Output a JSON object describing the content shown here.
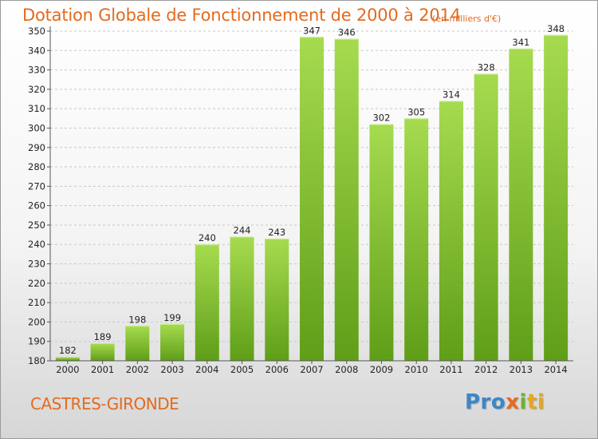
{
  "chart_data": {
    "type": "bar",
    "title": "Dotation Globale de Fonctionnement de 2000 à 2014",
    "subtitle": "(en milliers d'€)",
    "categories": [
      "2000",
      "2001",
      "2002",
      "2003",
      "2004",
      "2005",
      "2006",
      "2007",
      "2008",
      "2009",
      "2010",
      "2011",
      "2012",
      "2013",
      "2014"
    ],
    "values": [
      182,
      189,
      198,
      199,
      240,
      244,
      243,
      347,
      346,
      302,
      305,
      314,
      328,
      341,
      348
    ],
    "ylim": [
      180,
      350
    ],
    "yticks": [
      180,
      190,
      200,
      210,
      220,
      230,
      240,
      250,
      260,
      270,
      280,
      290,
      300,
      310,
      320,
      330,
      340,
      350
    ],
    "grid": true,
    "bar_color": "#7cbf2f",
    "bar_color_light": "#a2d94a",
    "bar_color_dark": "#5d9c17",
    "title_color": "#e46a1e"
  },
  "commune": "CASTRES-GIRONDE",
  "logo": {
    "parts": [
      "Pro",
      "x",
      "i",
      "ti"
    ]
  }
}
